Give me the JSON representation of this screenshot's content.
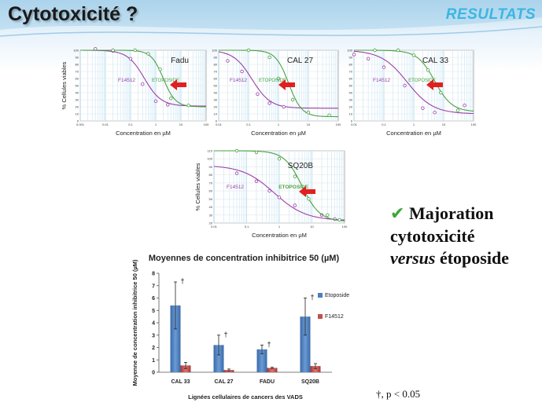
{
  "slide": {
    "title": "Cytotoxicité ?",
    "section": "RESULTATS",
    "claim": {
      "line1": "Majoration",
      "line2": "cytotoxicité",
      "line3_em": "versus",
      "line3_rest": " étoposide"
    },
    "footnote": "†, p < 0.05",
    "colors": {
      "accent": "#3bb6e3",
      "check": "#39a935",
      "arrow": "#e02020",
      "etoposide": "#4aa043",
      "f14512": "#9b3fa8"
    }
  },
  "chart_data": [
    {
      "type": "line",
      "title": "Fadu",
      "xscale": "log",
      "xlabel": "Concentration en µM",
      "ylabel": "% Cellules viables",
      "xlim": [
        0.001,
        100
      ],
      "ylim": [
        0,
        100
      ],
      "xticks": [
        "0.001",
        "0.01",
        "0.1",
        "1",
        "10",
        "100"
      ],
      "yticks": [
        "0",
        "10",
        "20",
        "30",
        "40",
        "50",
        "60",
        "70",
        "80",
        "90",
        "100"
      ],
      "series": [
        {
          "name": "F14512",
          "ic50": 0.35,
          "hill": 1.3,
          "points": [
            [
              0.004,
              102
            ],
            [
              0.02,
              99
            ],
            [
              0.1,
              88
            ],
            [
              0.3,
              52
            ],
            [
              1,
              28
            ],
            [
              3,
              23
            ]
          ]
        },
        {
          "name": "ETOPOSIDE",
          "ic50": 2,
          "hill": 1.8,
          "points": [
            [
              0.02,
              100
            ],
            [
              0.15,
              100
            ],
            [
              0.5,
              95
            ],
            [
              1.5,
              73
            ],
            [
              4,
              32
            ],
            [
              20,
              22
            ]
          ]
        }
      ]
    },
    {
      "type": "line",
      "title": "CAL 27",
      "xscale": "log",
      "xlabel": "Concentration en µM",
      "ylabel": "",
      "xlim": [
        0.01,
        100
      ],
      "ylim": [
        0,
        100
      ],
      "xticks": [
        "0.01",
        "0.1",
        "1",
        "10",
        "100"
      ],
      "yticks": [
        "0",
        "10",
        "20",
        "30",
        "40",
        "50",
        "60",
        "70",
        "80",
        "90",
        "100"
      ],
      "series": [
        {
          "name": "F14512",
          "ic50": 0.13,
          "hill": 1.4,
          "points": [
            [
              0.02,
              85
            ],
            [
              0.06,
              70
            ],
            [
              0.2,
              38
            ],
            [
              0.5,
              25
            ],
            [
              1.5,
              20
            ]
          ]
        },
        {
          "name": "ETOPOSIDE",
          "ic50": 2.2,
          "hill": 2.0,
          "points": [
            [
              0.1,
              100
            ],
            [
              0.5,
              90
            ],
            [
              1,
              60
            ],
            [
              3,
              30
            ],
            [
              10,
              12
            ],
            [
              50,
              8
            ]
          ]
        }
      ]
    },
    {
      "type": "line",
      "title": "CAL 33",
      "xscale": "log",
      "xlabel": "Concentration en µM",
      "ylabel": "",
      "xlim": [
        0.01,
        100
      ],
      "ylim": [
        0,
        100
      ],
      "xticks": [
        "0.01",
        "0.1",
        "1",
        "10",
        "100"
      ],
      "yticks": [
        "0",
        "10",
        "20",
        "30",
        "40",
        "50",
        "60",
        "70",
        "80",
        "90",
        "100"
      ],
      "series": [
        {
          "name": "F14512",
          "ic50": 0.6,
          "hill": 1.0,
          "points": [
            [
              0.01,
              94
            ],
            [
              0.03,
              88
            ],
            [
              0.1,
              76
            ],
            [
              0.5,
              50
            ],
            [
              2,
              18
            ],
            [
              5,
              12
            ],
            [
              50,
              22
            ]
          ]
        },
        {
          "name": "ETOPOSIDE",
          "ic50": 5,
          "hill": 1.5,
          "points": [
            [
              0.05,
              100
            ],
            [
              0.3,
              100
            ],
            [
              1,
              93
            ],
            [
              3,
              72
            ],
            [
              8,
              40
            ],
            [
              30,
              15
            ]
          ]
        }
      ]
    },
    {
      "type": "line",
      "title": "SQ20B",
      "xscale": "log",
      "xlabel": "Concentration en µM",
      "ylabel": "% Cellules viables",
      "xlim": [
        0.01,
        100
      ],
      "ylim": [
        20,
        110
      ],
      "xticks": [
        "0.01",
        "0.1",
        "1",
        "10",
        "100"
      ],
      "yticks": [
        "20",
        "30",
        "40",
        "50",
        "60",
        "70",
        "80",
        "90",
        "100",
        "110"
      ],
      "series": [
        {
          "name": "F14512",
          "ic50": 0.7,
          "hill": 0.9,
          "points": [
            [
              0.05,
              82
            ],
            [
              0.2,
              72
            ],
            [
              0.5,
              60
            ],
            [
              1,
              52
            ],
            [
              3,
              42
            ],
            [
              20,
              30
            ],
            [
              50,
              25
            ]
          ]
        },
        {
          "name": "ETOPOSIDE",
          "ic50": 5,
          "hill": 1.6,
          "points": [
            [
              0.05,
              110
            ],
            [
              0.2,
              108
            ],
            [
              1,
              100
            ],
            [
              3,
              78
            ],
            [
              8,
              50
            ],
            [
              30,
              30
            ],
            [
              70,
              24
            ]
          ]
        }
      ]
    },
    {
      "type": "bar",
      "title": "Moyennes de concentration inhibitrice 50 (µM)",
      "xlabel": "Lignées cellulaires de cancers des VADS",
      "ylabel": "Moyenne de concentration inhibitrice 50 (µM)",
      "categories": [
        "CAL 33",
        "CAL 27",
        "FADU",
        "SQ20B"
      ],
      "ylim": [
        0,
        8
      ],
      "yticks": [
        "0",
        "1",
        "2",
        "3",
        "4",
        "5",
        "6",
        "7",
        "8"
      ],
      "series": [
        {
          "name": "Etoposide",
          "color": "#4a7ebf",
          "values": [
            5.4,
            2.2,
            1.85,
            4.5
          ],
          "errors": [
            1.9,
            0.8,
            0.35,
            1.5
          ]
        },
        {
          "name": "F14512",
          "color": "#c0504d",
          "values": [
            0.55,
            0.18,
            0.35,
            0.5
          ],
          "errors": [
            0.25,
            0.08,
            0.05,
            0.2
          ]
        }
      ],
      "significance_marker": "†"
    }
  ]
}
